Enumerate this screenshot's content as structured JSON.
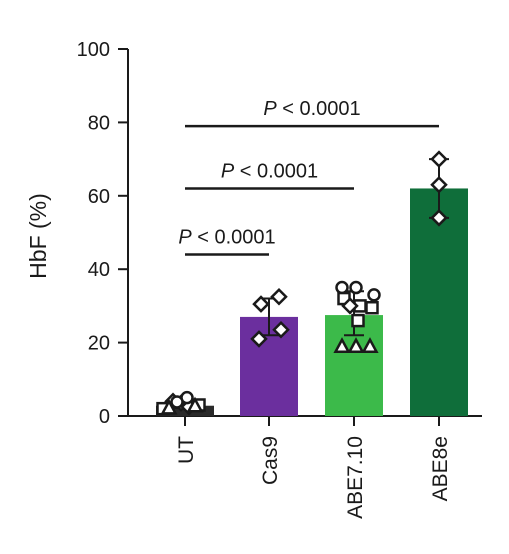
{
  "chart_data": {
    "type": "bar",
    "ylabel": "HbF (%)",
    "ylim": [
      0,
      100
    ],
    "yticks": [
      0,
      20,
      40,
      60,
      80,
      100
    ],
    "categories": [
      "UT",
      "Cas9",
      "ABE7.10",
      "ABE8e"
    ],
    "bar_colors": [
      "#2a2a2a",
      "#6b2f9e",
      "#3cba4a",
      "#0f6e3a"
    ],
    "values": [
      2.8,
      27.0,
      27.5,
      62.0
    ],
    "error": [
      [
        2.2,
        3.5
      ],
      [
        22,
        32
      ],
      [
        22,
        34
      ],
      [
        54,
        70
      ]
    ],
    "points": [
      [
        {
          "y": 2.0,
          "m": "square",
          "dx": -22
        },
        {
          "y": 3.0,
          "m": "square",
          "dx": 14
        },
        {
          "y": 4.0,
          "m": "diamond",
          "dx": -12
        },
        {
          "y": 3.5,
          "m": "diamond",
          "dx": -4
        },
        {
          "y": 2.5,
          "m": "diamond",
          "dx": 4
        },
        {
          "y": 5.0,
          "m": "circle",
          "dx": 2
        },
        {
          "y": 3.8,
          "m": "circle",
          "dx": -8
        },
        {
          "y": 2.8,
          "m": "triangle",
          "dx": 10
        },
        {
          "y": 2.2,
          "m": "triangle",
          "dx": -16
        }
      ],
      [
        {
          "y": 32.5,
          "m": "diamond",
          "dx": 10
        },
        {
          "y": 30.5,
          "m": "diamond",
          "dx": -8
        },
        {
          "y": 23.5,
          "m": "diamond",
          "dx": 12
        },
        {
          "y": 21.0,
          "m": "diamond",
          "dx": -10
        }
      ],
      [
        {
          "y": 35.0,
          "m": "circle",
          "dx": -12
        },
        {
          "y": 35.0,
          "m": "circle",
          "dx": 2
        },
        {
          "y": 33.0,
          "m": "circle",
          "dx": 20
        },
        {
          "y": 32.0,
          "m": "square",
          "dx": -10
        },
        {
          "y": 30.0,
          "m": "square",
          "dx": 6
        },
        {
          "y": 29.5,
          "m": "square",
          "dx": 18
        },
        {
          "y": 26.0,
          "m": "square",
          "dx": 4
        },
        {
          "y": 30.0,
          "m": "diamond",
          "dx": -4
        },
        {
          "y": 19.0,
          "m": "triangle",
          "dx": -12
        },
        {
          "y": 19.0,
          "m": "triangle",
          "dx": 2
        },
        {
          "y": 19.0,
          "m": "triangle",
          "dx": 16
        }
      ],
      [
        {
          "y": 70.0,
          "m": "diamond",
          "dx": 0
        },
        {
          "y": 63.0,
          "m": "diamond",
          "dx": 0
        },
        {
          "y": 54.0,
          "m": "diamond",
          "dx": 0
        }
      ]
    ],
    "comparisons": [
      {
        "from": 0,
        "to": 1,
        "y": 44,
        "label": "P < 0.0001"
      },
      {
        "from": 0,
        "to": 2,
        "y": 62,
        "label": "P < 0.0001"
      },
      {
        "from": 0,
        "to": 3,
        "y": 79,
        "label": "P < 0.0001"
      }
    ]
  }
}
